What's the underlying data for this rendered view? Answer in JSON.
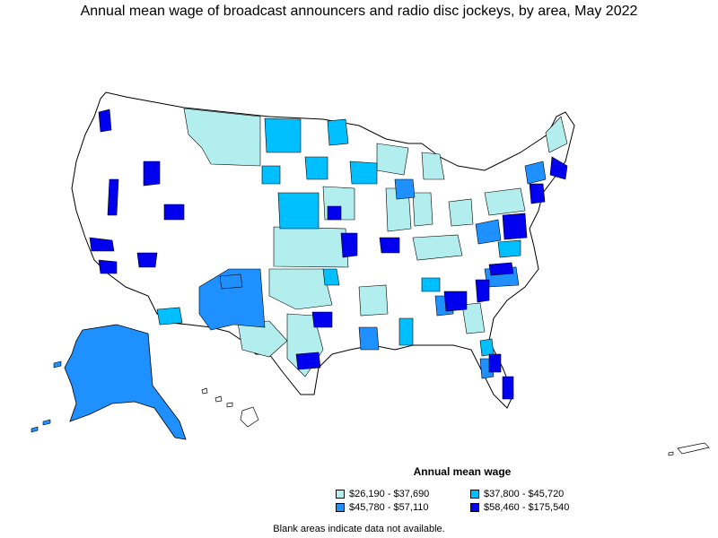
{
  "title": "Annual mean wage of broadcast announcers and radio disc jockeys, by area, May 2022",
  "legend": {
    "title": "Annual mean wage",
    "items": [
      {
        "label": "$26,190 - $37,690",
        "color": "#b3eeee"
      },
      {
        "label": "$37,800 - $45,720",
        "color": "#00bfff"
      },
      {
        "label": "$45,780 - $57,110",
        "color": "#1e90ff"
      },
      {
        "label": "$58,460 - $175,540",
        "color": "#0000ee"
      }
    ]
  },
  "note": "Blank areas indicate data not available.",
  "colors": {
    "outline": "#000000",
    "blank": "#ffffff"
  }
}
